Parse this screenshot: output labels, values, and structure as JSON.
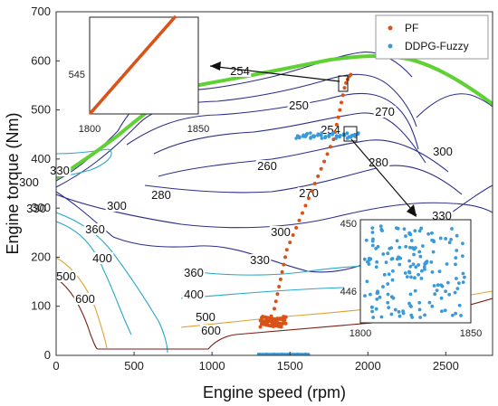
{
  "chart_data": {
    "type": "scatter",
    "title": "",
    "xlabel": "Engine speed (rpm)",
    "ylabel": "Engine torque (Nm)",
    "xlim": [
      0,
      2800
    ],
    "ylim": [
      0,
      700
    ],
    "xticks": [
      "0",
      "500",
      "1000",
      "1500",
      "2000",
      "2500"
    ],
    "yticks": [
      "0",
      "100",
      "200",
      "300",
      "400",
      "500",
      "600",
      "700"
    ],
    "colors": {
      "PF": "#D95319",
      "DDPG-Fuzzy": "#3A9AD9",
      "max_torque_curve": "#5FD132",
      "contours_low": "#2E2F8C",
      "contours_mid": "#2AA7C9",
      "contours_high": "#7B1E10"
    },
    "legend": {
      "placement": "top-right",
      "entries": [
        "PF",
        "DDPG-Fuzzy"
      ]
    },
    "series": [
      {
        "name": "PF",
        "note_points": "operating points",
        "points": [
          [
            1320,
            65
          ],
          [
            1340,
            68
          ],
          [
            1360,
            70
          ],
          [
            1380,
            72
          ],
          [
            1400,
            70
          ],
          [
            1420,
            73
          ],
          [
            1440,
            75
          ],
          [
            1460,
            72
          ],
          [
            1380,
            80
          ],
          [
            1400,
            95
          ],
          [
            1410,
            110
          ],
          [
            1420,
            125
          ],
          [
            1430,
            140
          ],
          [
            1440,
            155
          ],
          [
            1450,
            170
          ],
          [
            1460,
            185
          ],
          [
            1470,
            200
          ],
          [
            1480,
            215
          ],
          [
            1500,
            230
          ],
          [
            1520,
            245
          ],
          [
            1540,
            260
          ],
          [
            1560,
            275
          ],
          [
            1580,
            290
          ],
          [
            1600,
            305
          ],
          [
            1620,
            320
          ],
          [
            1640,
            335
          ],
          [
            1660,
            350
          ],
          [
            1680,
            365
          ],
          [
            1700,
            380
          ],
          [
            1720,
            395
          ],
          [
            1740,
            410
          ],
          [
            1760,
            425
          ],
          [
            1780,
            440
          ],
          [
            1790,
            455
          ],
          [
            1800,
            470
          ],
          [
            1810,
            485
          ],
          [
            1820,
            500
          ],
          [
            1830,
            515
          ],
          [
            1840,
            530
          ],
          [
            1850,
            545
          ],
          [
            1860,
            555
          ],
          [
            1870,
            562
          ],
          [
            1880,
            568
          ],
          [
            1890,
            572
          ]
        ]
      },
      {
        "name": "DDPG-Fuzzy",
        "note_points": "operating points",
        "points": [
          [
            1550,
            447
          ],
          [
            1600,
            446
          ],
          [
            1650,
            447
          ],
          [
            1700,
            448
          ],
          [
            1750,
            446
          ],
          [
            1800,
            447
          ],
          [
            1850,
            449
          ],
          [
            1880,
            445
          ],
          [
            1900,
            448
          ],
          [
            1920,
            446
          ],
          [
            1300,
            2
          ],
          [
            1350,
            2
          ],
          [
            1400,
            2
          ],
          [
            1450,
            2
          ],
          [
            1500,
            2
          ],
          [
            1550,
            2
          ],
          [
            1600,
            2
          ]
        ]
      }
    ],
    "contour_labels": [
      "250",
      "250",
      "254",
      "254",
      "260",
      "270",
      "270",
      "280",
      "280",
      "300",
      "300",
      "300",
      "300",
      "330",
      "330",
      "330",
      "330",
      "360",
      "360",
      "400",
      "400",
      "500",
      "500",
      "600",
      "600"
    ],
    "insets": [
      {
        "xticks": [
          "1800",
          "1850"
        ],
        "yticks": [
          "545"
        ]
      },
      {
        "xticks": [
          "1800",
          "1850"
        ],
        "yticks": [
          "450",
          "446"
        ]
      }
    ]
  }
}
